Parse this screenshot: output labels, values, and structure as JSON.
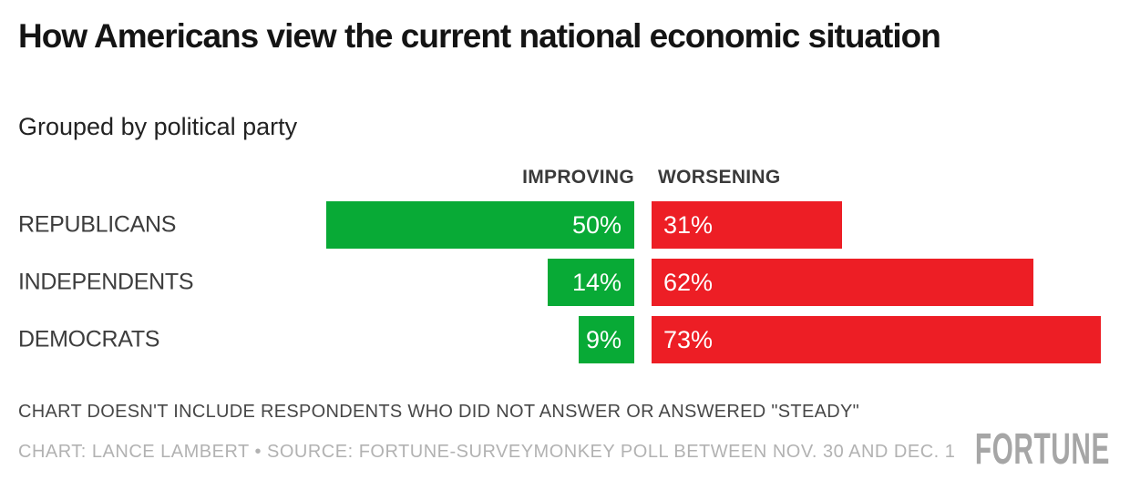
{
  "header": {
    "title": "How Americans view the current national economic situation",
    "subtitle": "Grouped by political party"
  },
  "chart_data": {
    "type": "bar",
    "orientation": "horizontal-diverging",
    "categories": [
      "REPUBLICANS",
      "INDEPENDENTS",
      "DEMOCRATS"
    ],
    "series": [
      {
        "name": "IMPROVING",
        "color": "#08aa36",
        "values": [
          50,
          14,
          9
        ]
      },
      {
        "name": "WORSENING",
        "color": "#ed1e25",
        "values": [
          31,
          62,
          73
        ]
      }
    ],
    "value_suffix": "%",
    "value_labels_shown": true,
    "xlim": [
      0,
      100
    ],
    "grid": false,
    "legend_position": "column-headers-above-bars"
  },
  "footer": {
    "note": "CHART DOESN'T INCLUDE RESPONDENTS WHO DID NOT ANSWER OR ANSWERED \"STEADY\"",
    "credit": "CHART: LANCE LAMBERT • SOURCE: FORTUNE-SURVEYMONKEY POLL BETWEEN NOV. 30 AND DEC. 1",
    "logo": "FORTUNE"
  },
  "colors": {
    "improving_green": "#08aa36",
    "worsening_red": "#ed1e25",
    "logo_gray": "#a6a6a6"
  }
}
